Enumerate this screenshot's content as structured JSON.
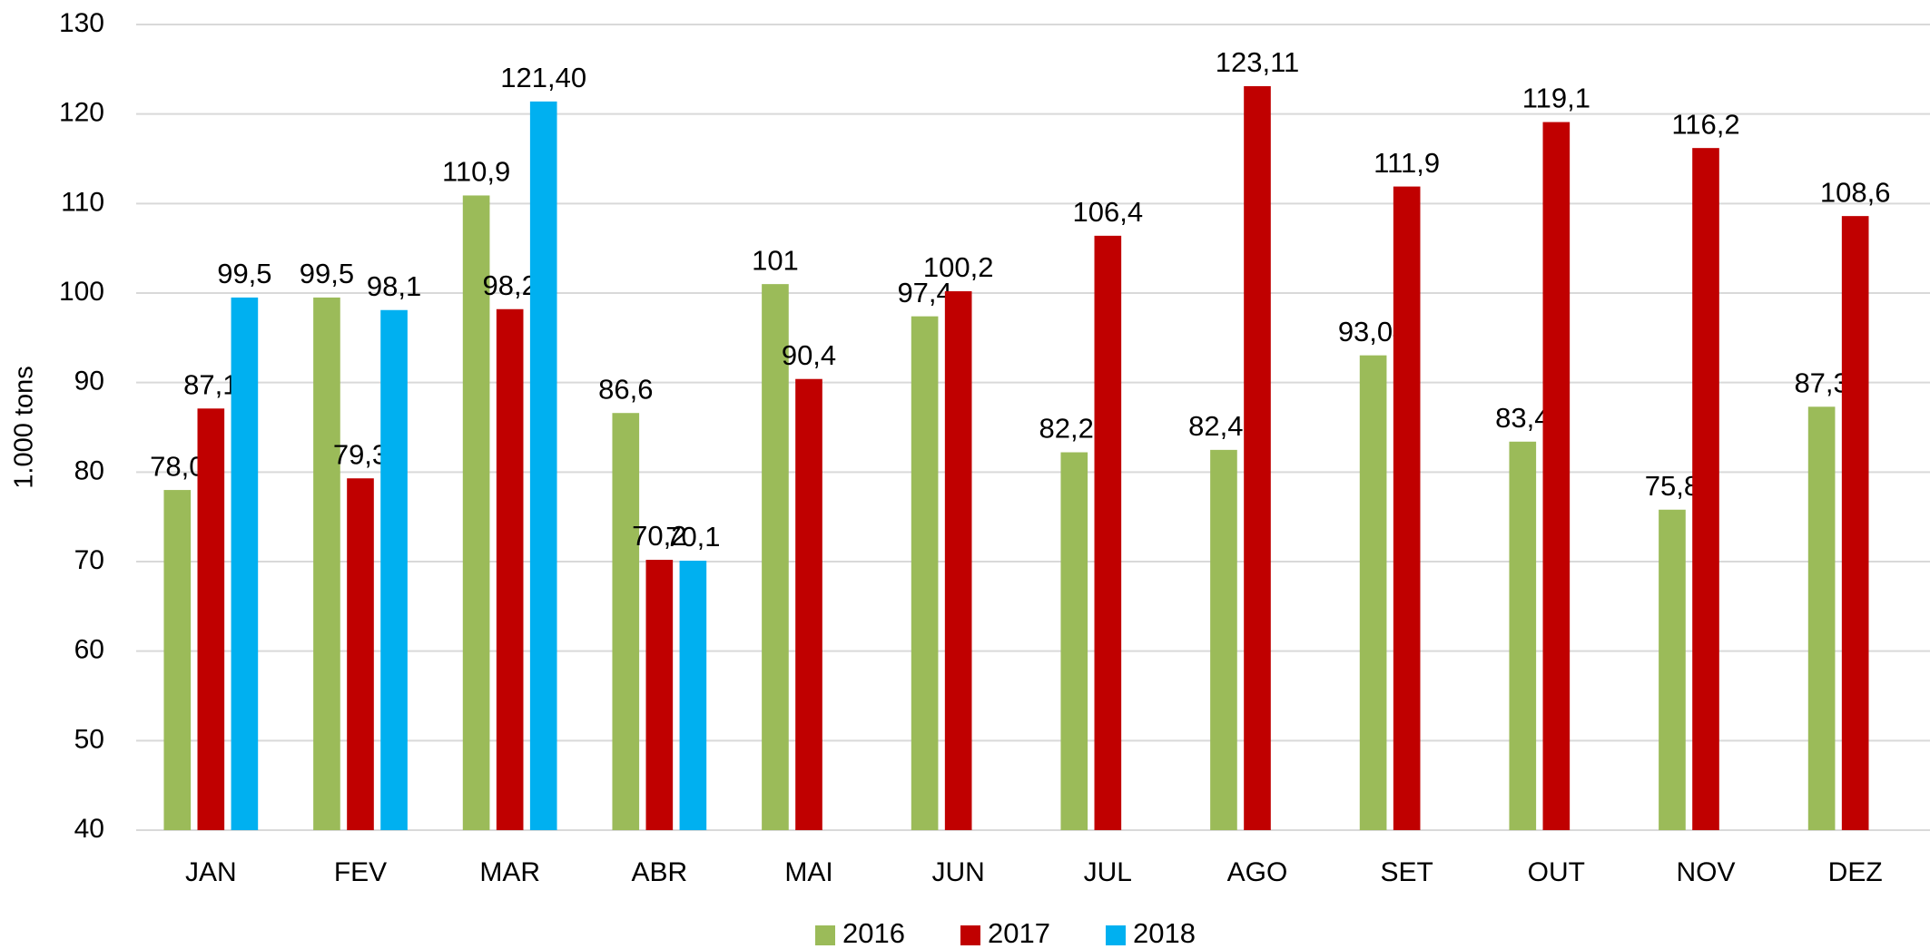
{
  "chart_data": {
    "type": "bar",
    "y_label": "1.000 tons",
    "categories": [
      "JAN",
      "FEV",
      "MAR",
      "ABR",
      "MAI",
      "JUN",
      "JUL",
      "AGO",
      "SET",
      "OUT",
      "NOV",
      "DEZ"
    ],
    "series": [
      {
        "name": "2016",
        "color": "#9bbb59",
        "values": [
          78.0,
          99.5,
          110.9,
          86.6,
          101,
          97.4,
          82.21,
          82.48,
          93.04,
          83.4,
          75.8,
          87.3
        ],
        "value_labels": [
          "78,0",
          "99,5",
          "110,9",
          "86,6",
          "101",
          "97,4",
          "82,21",
          "82,48",
          "93,04",
          "83,4",
          "75,8",
          "87,3"
        ]
      },
      {
        "name": "2017",
        "color": "#c00000",
        "values": [
          87.1,
          79.3,
          98.2,
          70.2,
          90.4,
          100.2,
          106.4,
          123.11,
          111.9,
          119.1,
          116.2,
          108.6
        ],
        "value_labels": [
          "87,1",
          "79,3",
          "98,2",
          "70,2",
          "90,4",
          "100,2",
          "106,4",
          "123,11",
          "111,9",
          "119,1",
          "116,2",
          "108,6"
        ]
      },
      {
        "name": "2018",
        "color": "#00b0f0",
        "values": [
          99.5,
          98.1,
          121.4,
          70.1,
          null,
          null,
          null,
          null,
          null,
          null,
          null,
          null
        ],
        "value_labels": [
          "99,5",
          "98,1",
          "121,40",
          "70,1",
          null,
          null,
          null,
          null,
          null,
          null,
          null,
          null
        ]
      }
    ],
    "ylim": [
      40,
      130
    ],
    "yticks": [
      40,
      50,
      60,
      70,
      80,
      90,
      100,
      110,
      120,
      130
    ],
    "grid": true,
    "legend": "bottom"
  }
}
